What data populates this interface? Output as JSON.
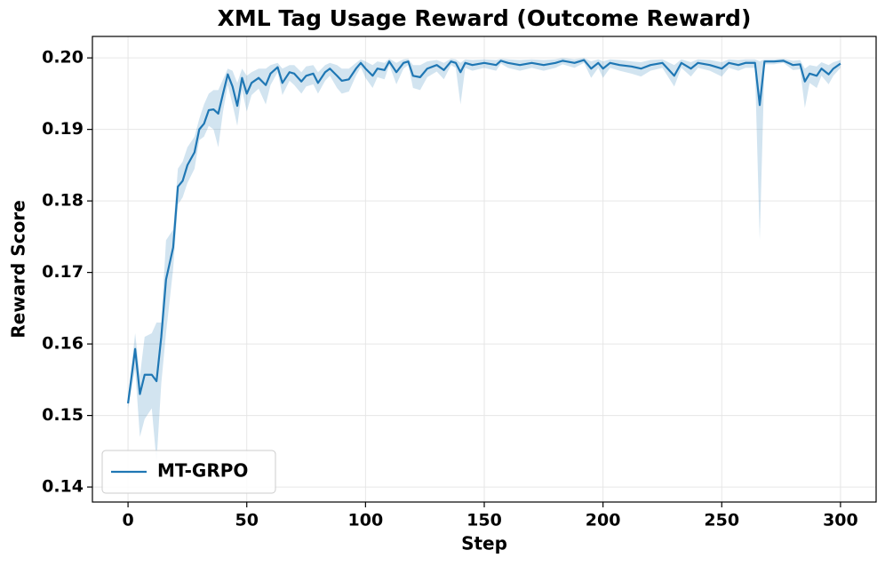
{
  "chart_data": {
    "type": "line",
    "title": "XML Tag Usage Reward (Outcome Reward)",
    "x_label": "Step",
    "y_label": "Reward Score",
    "xlim": [
      -15,
      315
    ],
    "ylim": [
      0.1379,
      0.203
    ],
    "xticks": [
      0,
      50,
      100,
      150,
      200,
      250,
      300
    ],
    "yticks": [
      0.14,
      0.15,
      0.16,
      0.17,
      0.18,
      0.19,
      {
        "value": 0.2,
        "label": "0.20"
      }
    ],
    "grid": true,
    "legend": "lower left",
    "x": [
      0,
      3,
      5,
      7,
      10,
      12,
      14,
      16,
      19,
      21,
      23,
      25,
      28,
      30,
      32,
      34,
      36,
      38,
      40,
      42,
      44,
      46,
      48,
      50,
      52,
      55,
      58,
      60,
      63,
      65,
      68,
      70,
      73,
      75,
      78,
      80,
      83,
      85,
      88,
      90,
      93,
      96,
      98,
      100,
      103,
      105,
      108,
      110,
      113,
      116,
      118,
      120,
      123,
      126,
      130,
      133,
      136,
      138,
      140,
      142,
      145,
      150,
      155,
      157,
      160,
      165,
      170,
      175,
      180,
      183,
      188,
      192,
      195,
      198,
      200,
      203,
      207,
      212,
      216,
      220,
      225,
      230,
      233,
      237,
      240,
      245,
      250,
      253,
      257,
      260,
      264,
      266,
      268,
      272,
      276,
      280,
      283,
      285,
      287,
      290,
      292,
      295,
      297,
      300
    ],
    "series": [
      {
        "name": "MT-GRPO",
        "color": "#1f77b4",
        "values": [
          0.1517,
          0.1593,
          0.153,
          0.1557,
          0.1557,
          0.1548,
          0.161,
          0.169,
          0.1735,
          0.182,
          0.1828,
          0.185,
          0.1868,
          0.19,
          0.1908,
          0.1927,
          0.1928,
          0.1922,
          0.195,
          0.1977,
          0.196,
          0.1933,
          0.1972,
          0.195,
          0.1965,
          0.1972,
          0.1962,
          0.1978,
          0.1987,
          0.1965,
          0.198,
          0.1978,
          0.1967,
          0.1975,
          0.1978,
          0.1965,
          0.198,
          0.1985,
          0.1975,
          0.1968,
          0.197,
          0.1985,
          0.1993,
          0.1985,
          0.1975,
          0.1985,
          0.1983,
          0.1995,
          0.198,
          0.1993,
          0.1995,
          0.1975,
          0.1973,
          0.1985,
          0.199,
          0.1983,
          0.1995,
          0.1993,
          0.198,
          0.1993,
          0.199,
          0.1993,
          0.199,
          0.1996,
          0.1993,
          0.199,
          0.1993,
          0.199,
          0.1993,
          0.1996,
          0.1993,
          0.1997,
          0.1985,
          0.1993,
          0.1985,
          0.1993,
          0.199,
          0.1988,
          0.1985,
          0.199,
          0.1993,
          0.1975,
          0.1993,
          0.1985,
          0.1993,
          0.199,
          0.1985,
          0.1993,
          0.199,
          0.1993,
          0.1993,
          0.1934,
          0.1995,
          0.1995,
          0.1996,
          0.199,
          0.1991,
          0.1967,
          0.1978,
          0.1975,
          0.1985,
          0.1977,
          0.1985,
          0.1992
        ],
        "upper": [
          0.1525,
          0.1615,
          0.1555,
          0.161,
          0.1615,
          0.163,
          0.163,
          0.1745,
          0.176,
          0.1845,
          0.1855,
          0.1875,
          0.189,
          0.1915,
          0.1935,
          0.195,
          0.1955,
          0.1955,
          0.197,
          0.1985,
          0.1982,
          0.1965,
          0.1985,
          0.1975,
          0.198,
          0.1985,
          0.1985,
          0.199,
          0.1993,
          0.1985,
          0.199,
          0.199,
          0.198,
          0.1988,
          0.199,
          0.198,
          0.199,
          0.1993,
          0.199,
          0.1985,
          0.1985,
          0.1993,
          0.1998,
          0.1995,
          0.199,
          0.1995,
          0.1993,
          0.1999,
          0.1993,
          0.1998,
          0.1999,
          0.199,
          0.199,
          0.1995,
          0.1997,
          0.1993,
          0.1999,
          0.1998,
          0.1993,
          0.1998,
          0.1997,
          0.1998,
          0.1997,
          0.1999,
          0.1998,
          0.1997,
          0.1998,
          0.1997,
          0.1998,
          0.2,
          0.1998,
          0.2,
          0.1995,
          0.1998,
          0.1995,
          0.1998,
          0.1997,
          0.1995,
          0.1994,
          0.1997,
          0.1998,
          0.199,
          0.1998,
          0.1994,
          0.1998,
          0.1997,
          0.1994,
          0.1998,
          0.1997,
          0.1998,
          0.1998,
          0.1995,
          0.1998,
          0.1998,
          0.1999,
          0.1996,
          0.1997,
          0.1985,
          0.199,
          0.1988,
          0.1994,
          0.199,
          0.1994,
          0.1997
        ],
        "lower": [
          0.151,
          0.1565,
          0.147,
          0.1495,
          0.151,
          0.1435,
          0.1545,
          0.1615,
          0.1705,
          0.1795,
          0.1805,
          0.1825,
          0.1845,
          0.1885,
          0.189,
          0.1905,
          0.19,
          0.1875,
          0.1925,
          0.1962,
          0.1935,
          0.1905,
          0.1955,
          0.1925,
          0.1948,
          0.1957,
          0.1935,
          0.1962,
          0.198,
          0.1948,
          0.1968,
          0.1962,
          0.195,
          0.196,
          0.1963,
          0.195,
          0.1968,
          0.1975,
          0.1958,
          0.195,
          0.1953,
          0.1975,
          0.1987,
          0.1972,
          0.1958,
          0.1973,
          0.197,
          0.199,
          0.1963,
          0.1985,
          0.199,
          0.1958,
          0.1955,
          0.1973,
          0.1981,
          0.197,
          0.199,
          0.1986,
          0.1935,
          0.1986,
          0.1982,
          0.1986,
          0.1982,
          0.1992,
          0.1986,
          0.1982,
          0.1986,
          0.1982,
          0.1986,
          0.1991,
          0.1986,
          0.1993,
          0.1972,
          0.1986,
          0.1972,
          0.1986,
          0.1982,
          0.1978,
          0.1974,
          0.1982,
          0.1986,
          0.196,
          0.1986,
          0.1974,
          0.1986,
          0.1982,
          0.1974,
          0.1986,
          0.1982,
          0.1986,
          0.1986,
          0.1745,
          0.1991,
          0.1991,
          0.1993,
          0.1983,
          0.1984,
          0.193,
          0.1965,
          0.1958,
          0.1975,
          0.1963,
          0.1975,
          0.1986
        ]
      }
    ]
  }
}
